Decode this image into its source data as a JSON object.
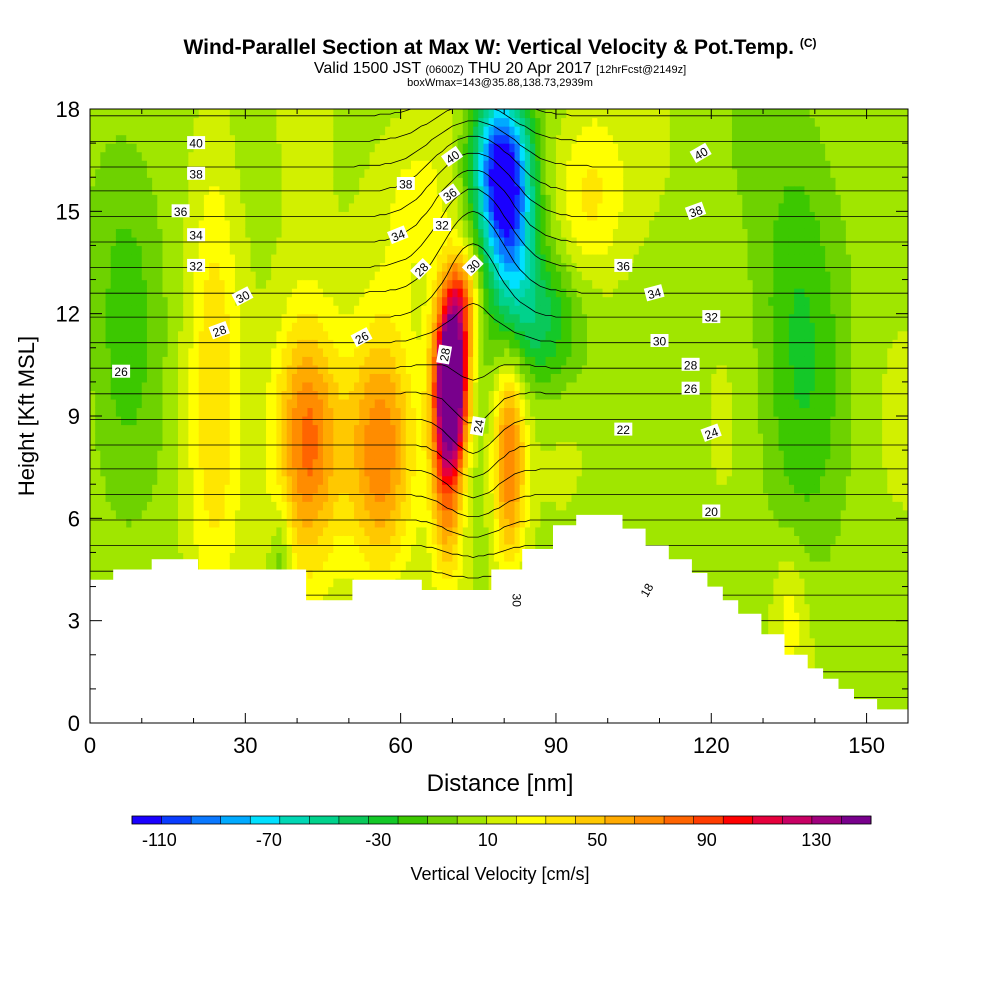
{
  "title": {
    "main": "Wind-Parallel Section at Max W: Vertical Velocity & Pot.Temp.",
    "copyright": "(C)",
    "valid_prefix": "Valid 1500 JST",
    "valid_z": "(0600Z)",
    "valid_date": "THU 20 Apr 2017",
    "forecast": "[12hrFcst@2149z]",
    "box": "boxWmax=143@35.88,138.73,2939m"
  },
  "chart_data": {
    "type": "heatmap",
    "xlabel": "Distance [nm]",
    "ylabel": "Height [Kft MSL]",
    "xlim": [
      0,
      158
    ],
    "ylim": [
      0,
      18
    ],
    "xticks": [
      "0",
      "30",
      "60",
      "90",
      "120",
      "150"
    ],
    "yticks": [
      "0",
      "3",
      "6",
      "9",
      "12",
      "15",
      "18"
    ],
    "colorbar": {
      "label": "Vertical Velocity [cm/s]",
      "ticks": [
        "-110",
        "-70",
        "-30",
        "10",
        "50",
        "90",
        "130"
      ],
      "min": -120,
      "max": 150,
      "colors": [
        "#1a00ff",
        "#0a3cff",
        "#0a78ff",
        "#00aaff",
        "#00e0ff",
        "#00d7b4",
        "#00d28c",
        "#0ac85a",
        "#14c828",
        "#3cc800",
        "#6ed200",
        "#a0e600",
        "#d2f000",
        "#ffff00",
        "#ffe600",
        "#ffc800",
        "#ffaa00",
        "#ff8c00",
        "#ff6400",
        "#ff3c00",
        "#ff0000",
        "#e6003c",
        "#c80064",
        "#a0007d",
        "#78008c"
      ]
    },
    "velocity_blobs": [
      {
        "x": 70,
        "y": 10.2,
        "sx": 2.2,
        "sy": 1.6,
        "w": 150
      },
      {
        "x": 69,
        "y": 8.2,
        "sx": 2.2,
        "sy": 2.6,
        "w": 85
      },
      {
        "x": 72,
        "y": 12.5,
        "sx": 2.2,
        "sy": 1.0,
        "w": 50
      },
      {
        "x": 42,
        "y": 8.3,
        "sx": 4.5,
        "sy": 2.6,
        "w": 78
      },
      {
        "x": 56,
        "y": 8.0,
        "sx": 4.5,
        "sy": 2.6,
        "w": 62
      },
      {
        "x": 81,
        "y": 7.8,
        "sx": 2.2,
        "sy": 2.2,
        "w": 72
      },
      {
        "x": 24,
        "y": 10,
        "sx": 3.5,
        "sy": 6,
        "w": 30
      },
      {
        "x": 79,
        "y": 16.5,
        "sx": 4,
        "sy": 1.6,
        "w": -100
      },
      {
        "x": 81,
        "y": 14.5,
        "sx": 3.5,
        "sy": 1.8,
        "w": -75
      },
      {
        "x": 87,
        "y": 11.8,
        "sx": 6,
        "sy": 1.5,
        "w": -45
      },
      {
        "x": 37,
        "y": 4.6,
        "sx": 1.4,
        "sy": 1.4,
        "w": -25
      },
      {
        "x": 137,
        "y": 12,
        "sx": 6,
        "sy": 5,
        "w": -28
      },
      {
        "x": 7,
        "y": 13,
        "sx": 5,
        "sy": 4,
        "w": -22
      },
      {
        "x": 96,
        "y": 15.5,
        "sx": 5,
        "sy": 2,
        "w": 30
      },
      {
        "x": 135,
        "y": 3.2,
        "sx": 2.5,
        "sy": 1.6,
        "w": 22
      },
      {
        "x": 62,
        "y": 15.5,
        "sx": 6,
        "sy": 2,
        "w": 20
      }
    ],
    "terrain_heights": [
      4.2,
      4.2,
      4.2,
      4.5,
      4.5,
      4.5,
      4.5,
      4.5,
      4.8,
      4.8,
      4.8,
      4.8,
      4.8,
      4.8,
      4.5,
      4.5,
      4.5,
      4.5,
      4.5,
      4.5,
      4.5,
      4.5,
      4.5,
      4.5,
      4.5,
      4.5,
      4.5,
      4.5,
      3.6,
      3.6,
      3.6,
      3.6,
      3.6,
      3.6,
      4.2,
      4.2,
      4.2,
      4.2,
      4.2,
      4.2,
      4.2,
      4.2,
      4.2,
      3.9,
      3.9,
      3.9,
      3.9,
      3.9,
      3.9,
      3.9,
      3.9,
      3.9,
      4.5,
      4.5,
      4.5,
      4.5,
      5.1,
      5.1,
      5.1,
      5.1,
      5.8,
      5.8,
      5.8,
      6.1,
      6.1,
      6.1,
      6.1,
      6.1,
      6.1,
      5.7,
      5.7,
      5.7,
      5.2,
      5.2,
      5.2,
      4.8,
      4.8,
      4.8,
      4.4,
      4.4,
      4.0,
      4.0,
      3.6,
      3.6,
      3.2,
      3.2,
      3.2,
      2.6,
      2.6,
      2.6,
      2.0,
      2.0,
      2.0,
      1.6,
      1.6,
      1.3,
      1.3,
      1.0,
      1.0,
      0.7,
      0.7,
      0.7,
      0.4,
      0.4,
      0.4,
      0.4
    ],
    "theta_levels": [
      16,
      17,
      18,
      19,
      20,
      21,
      22,
      23,
      24,
      25,
      26,
      27,
      28,
      29,
      30,
      31,
      32,
      33,
      34,
      35,
      36,
      37,
      38,
      39,
      40,
      41,
      42
    ],
    "theta_labels": [
      {
        "text": "40",
        "x": 20.5,
        "y": 17.0,
        "rot": 0
      },
      {
        "text": "38",
        "x": 20.5,
        "y": 16.1,
        "rot": 0
      },
      {
        "text": "36",
        "x": 17.5,
        "y": 15.0,
        "rot": 0
      },
      {
        "text": "34",
        "x": 20.5,
        "y": 14.3,
        "rot": 0
      },
      {
        "text": "32",
        "x": 20.5,
        "y": 13.4,
        "rot": 0
      },
      {
        "text": "30",
        "x": 29.5,
        "y": 12.5,
        "rot": -28
      },
      {
        "text": "28",
        "x": 25.0,
        "y": 11.5,
        "rot": -20
      },
      {
        "text": "26",
        "x": 6.0,
        "y": 10.3,
        "rot": 0
      },
      {
        "text": "38",
        "x": 61.0,
        "y": 15.8,
        "rot": 0
      },
      {
        "text": "34",
        "x": 59.5,
        "y": 14.3,
        "rot": -22
      },
      {
        "text": "26",
        "x": 52.5,
        "y": 11.3,
        "rot": -28
      },
      {
        "text": "40",
        "x": 70.0,
        "y": 16.6,
        "rot": -35
      },
      {
        "text": "36",
        "x": 69.5,
        "y": 15.5,
        "rot": -35
      },
      {
        "text": "32",
        "x": 68.0,
        "y": 14.6,
        "rot": 0
      },
      {
        "text": "28",
        "x": 64.0,
        "y": 13.3,
        "rot": -45
      },
      {
        "text": "30",
        "x": 74.0,
        "y": 13.4,
        "rot": -45
      },
      {
        "text": "28",
        "x": 68.5,
        "y": 10.8,
        "rot": -80
      },
      {
        "text": "24",
        "x": 75.0,
        "y": 8.7,
        "rot": -80
      },
      {
        "text": "30",
        "x": 82.5,
        "y": 3.6,
        "rot": 90
      },
      {
        "text": "18",
        "x": 107.5,
        "y": 3.9,
        "rot": -60
      },
      {
        "text": "40",
        "x": 118.0,
        "y": 16.7,
        "rot": -30
      },
      {
        "text": "38",
        "x": 117.0,
        "y": 15.0,
        "rot": -20
      },
      {
        "text": "36",
        "x": 103.0,
        "y": 13.4,
        "rot": 0
      },
      {
        "text": "34",
        "x": 109.0,
        "y": 12.6,
        "rot": -15
      },
      {
        "text": "32",
        "x": 120.0,
        "y": 11.9,
        "rot": 0
      },
      {
        "text": "30",
        "x": 110.0,
        "y": 11.2,
        "rot": 0
      },
      {
        "text": "28",
        "x": 116.0,
        "y": 10.5,
        "rot": 0
      },
      {
        "text": "26",
        "x": 116.0,
        "y": 9.8,
        "rot": 0
      },
      {
        "text": "22",
        "x": 103.0,
        "y": 8.6,
        "rot": 0
      },
      {
        "text": "24",
        "x": 120.0,
        "y": 8.5,
        "rot": -20
      },
      {
        "text": "20",
        "x": 120.0,
        "y": 6.2,
        "rot": 0
      }
    ]
  }
}
